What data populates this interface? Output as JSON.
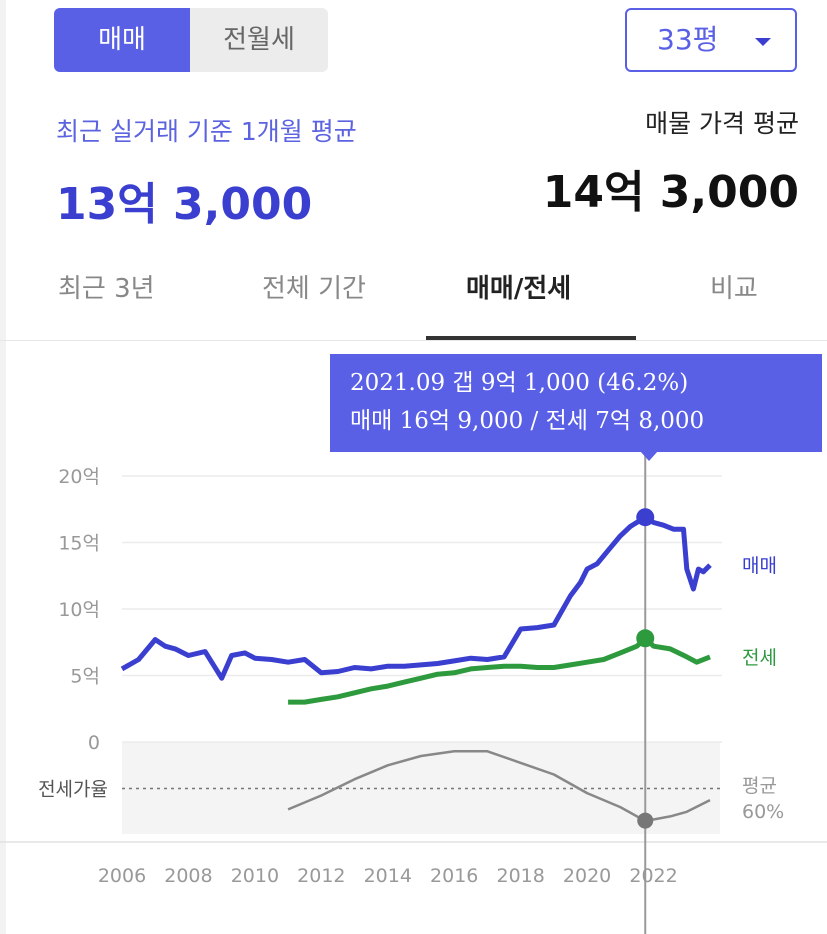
{
  "deal_toggle": {
    "options": [
      "매매",
      "전월세"
    ],
    "selected": "매매"
  },
  "area_select": {
    "value": "33평"
  },
  "summary": {
    "recent_label": "최근 실거래 기준 1개월 평균",
    "recent_value": "13억 3,000",
    "listing_label": "매물 가격 평균",
    "listing_value": "14억 3,000"
  },
  "tabs": [
    "최근 3년",
    "전체 기간",
    "매매/전세",
    "비교"
  ],
  "active_tab": "매매/전세",
  "tooltip": {
    "line1": "2021.09  갭 9억 1,000 (46.2%)",
    "line2": "매매 16억 9,000 / 전세 7억 8,000"
  },
  "colors": {
    "accent": "#5960e6",
    "sale": "#3a3fd0",
    "jeonse": "#2e9a3e",
    "ratio": "#888888"
  },
  "chart_data": {
    "type": "line",
    "x_ticks": [
      2006,
      2008,
      2010,
      2012,
      2014,
      2016,
      2018,
      2020,
      2022
    ],
    "y_ticks": [
      {
        "value": 0,
        "label": "0"
      },
      {
        "value": 5,
        "label": "5억"
      },
      {
        "value": 10,
        "label": "10억"
      },
      {
        "value": 15,
        "label": "15억"
      },
      {
        "value": 20,
        "label": "20억"
      }
    ],
    "y_unit": "억",
    "ylim": [
      0,
      20
    ],
    "xlim": [
      2006,
      2024
    ],
    "grid": true,
    "series": [
      {
        "name": "매매",
        "x": [
          2006.0,
          2006.5,
          2007.0,
          2007.3,
          2007.6,
          2008.0,
          2008.5,
          2009.0,
          2009.3,
          2009.7,
          2010.0,
          2010.5,
          2011.0,
          2011.5,
          2012.0,
          2012.5,
          2013.0,
          2013.5,
          2014.0,
          2014.5,
          2015.0,
          2015.5,
          2016.0,
          2016.5,
          2017.0,
          2017.5,
          2018.0,
          2018.5,
          2019.0,
          2019.5,
          2019.8,
          2020.0,
          2020.3,
          2020.6,
          2021.0,
          2021.3,
          2021.75,
          2022.0,
          2022.3,
          2022.6,
          2022.9,
          2023.0,
          2023.2,
          2023.35,
          2023.5,
          2023.7
        ],
        "values": [
          5.5,
          6.2,
          7.7,
          7.2,
          7.0,
          6.5,
          6.8,
          4.8,
          6.5,
          6.7,
          6.3,
          6.2,
          6.0,
          6.2,
          5.2,
          5.3,
          5.6,
          5.5,
          5.7,
          5.7,
          5.8,
          5.9,
          6.1,
          6.3,
          6.2,
          6.4,
          8.5,
          8.6,
          8.8,
          11.0,
          12.0,
          13.0,
          13.4,
          14.3,
          15.5,
          16.2,
          16.9,
          16.5,
          16.3,
          16.0,
          16.0,
          13.0,
          11.5,
          13.0,
          12.8,
          13.3
        ]
      },
      {
        "name": "전세",
        "x": [
          2011.0,
          2011.5,
          2012.0,
          2012.5,
          2013.0,
          2013.5,
          2014.0,
          2014.5,
          2015.0,
          2015.5,
          2016.0,
          2016.5,
          2017.0,
          2017.5,
          2018.0,
          2018.5,
          2019.0,
          2019.5,
          2020.0,
          2020.5,
          2021.0,
          2021.5,
          2021.75,
          2022.0,
          2022.5,
          2023.0,
          2023.3,
          2023.7
        ],
        "values": [
          3.0,
          3.0,
          3.2,
          3.4,
          3.7,
          4.0,
          4.2,
          4.5,
          4.8,
          5.1,
          5.2,
          5.5,
          5.6,
          5.7,
          5.7,
          5.6,
          5.6,
          5.8,
          6.0,
          6.2,
          6.7,
          7.2,
          7.8,
          7.2,
          7.0,
          6.4,
          6.0,
          6.4
        ]
      },
      {
        "name": "전세가율",
        "x": [
          2011.0,
          2012.0,
          2013.0,
          2014.0,
          2015.0,
          2016.0,
          2017.0,
          2018.0,
          2019.0,
          2020.0,
          2021.0,
          2021.75,
          2022.5,
          2023.0,
          2023.7
        ],
        "values": [
          51,
          57,
          64,
          70,
          74,
          76,
          76,
          71,
          66,
          58,
          52,
          46,
          48,
          50,
          55
        ]
      }
    ],
    "series_labels": [
      "매매",
      "전세"
    ],
    "ratio_chart": {
      "label": "전세가율",
      "avg_line": 60,
      "avg_label_top": "평균",
      "avg_label_bottom": "60%",
      "ylim": [
        40,
        80
      ]
    },
    "highlight": {
      "x": 2021.75,
      "sale": 16.9,
      "jeonse": 7.8,
      "ratio": 46.2
    }
  }
}
